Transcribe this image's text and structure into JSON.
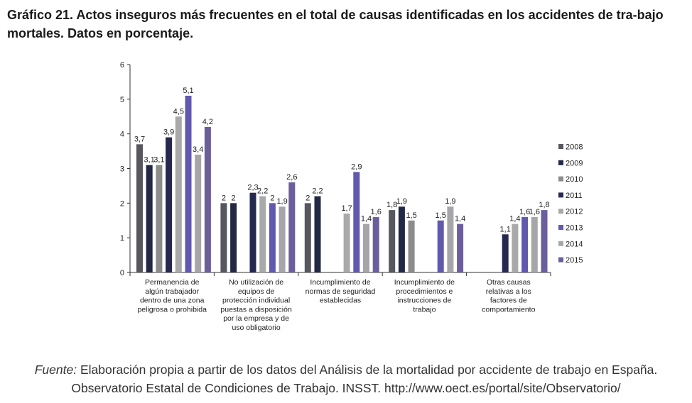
{
  "title": "Gráfico 21. Actos inseguros más frecuentes en el total de causas identificadas en los accidentes de tra-bajo mortales. Datos en porcentaje.",
  "source": {
    "label": "Fuente:",
    "text": " Elaboración propia a partir de los datos del Análisis de la mortalidad por accidente de trabajo en España. Observatorio Estatal de Condiciones de Trabajo. INSST. http://www.oect.es/portal/site/Observatorio/"
  },
  "chart_data": {
    "type": "bar",
    "ylim": [
      0,
      6
    ],
    "yticks": [
      "0",
      "1",
      "2",
      "3",
      "4",
      "5",
      "6"
    ],
    "grid": false,
    "legend_position": "right",
    "categories": [
      [
        "Permanencia de",
        "algún trabajador",
        "dentro de una zona",
        "peligrosa o prohibida"
      ],
      [
        "No utilización de",
        "equipos de",
        "protección individual",
        "puestas a disposición",
        "por la empresa y de",
        "uso obligatorio"
      ],
      [
        "Incumplimiento de",
        "normas de seguridad",
        "establecidas"
      ],
      [
        "Incumplimiento de",
        "procedimientos e",
        "instrucciones de",
        "trabajo"
      ],
      [
        "Otras causas",
        "relativas a los",
        "factores de",
        "comportamiento"
      ]
    ],
    "series": [
      {
        "name": "2008",
        "color": "#57575f",
        "values": [
          3.7,
          2,
          2,
          1.8,
          null
        ],
        "labels": [
          "3,7",
          "2",
          "2",
          "1,8",
          ""
        ]
      },
      {
        "name": "2009",
        "color": "#222845",
        "values": [
          3.1,
          2,
          2.2,
          1.9,
          null
        ],
        "labels": [
          "3,1",
          "2",
          "2,2",
          "1,9",
          ""
        ]
      },
      {
        "name": "2010",
        "color": "#8c8c8c",
        "values": [
          3.1,
          null,
          null,
          1.5,
          null
        ],
        "labels": [
          "3,1",
          "",
          "",
          "1,5",
          ""
        ]
      },
      {
        "name": "2011",
        "color": "#26294f",
        "values": [
          3.9,
          2.3,
          null,
          null,
          1.1
        ],
        "labels": [
          "3,9",
          "2,3",
          "",
          "",
          "1,1"
        ]
      },
      {
        "name": "2012",
        "color": "#a9a9a9",
        "values": [
          4.5,
          2.2,
          1.7,
          null,
          1.4
        ],
        "labels": [
          "4,5",
          "2,2",
          "1,7",
          "",
          "1,4"
        ]
      },
      {
        "name": "2013",
        "color": "#6159ad",
        "values": [
          5.1,
          2,
          2.9,
          1.5,
          1.6
        ],
        "labels": [
          "5,1",
          "2",
          "2,9",
          "1,5",
          "1,6"
        ]
      },
      {
        "name": "2014",
        "color": "#a6a6aa",
        "values": [
          3.4,
          1.9,
          1.4,
          1.9,
          1.6
        ],
        "labels": [
          "3,4",
          "1,9",
          "1,4",
          "1,9",
          "1,6"
        ]
      },
      {
        "name": "2015",
        "color": "#6c5e9c",
        "values": [
          4.2,
          2.6,
          1.6,
          1.4,
          1.8
        ],
        "labels": [
          "4,2",
          "2,6",
          "1,6",
          "1,4",
          "1,8"
        ]
      }
    ]
  }
}
